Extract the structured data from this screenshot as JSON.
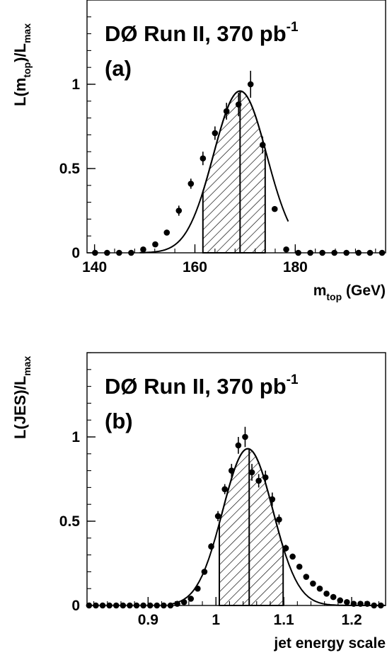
{
  "chart_data": [
    {
      "type": "scatter",
      "panel_label": "(a)",
      "title": "DØ Run II, 370 pb",
      "title_sup": "-1",
      "ylabel": {
        "base": "L(m",
        "sub1": "top",
        "mid": ")/L",
        "sub2": "max"
      },
      "xlabel": {
        "base": "m",
        "sub": "top",
        "unit": " (GeV)"
      },
      "xlim": [
        138.5,
        198
      ],
      "ylim": [
        0,
        1.5
      ],
      "x_ticks": [
        140,
        160,
        180
      ],
      "x_tick_labels": [
        "140",
        "160",
        "180"
      ],
      "y_ticks": [
        0,
        0.5,
        1
      ],
      "y_tick_labels": [
        "0",
        "0.5",
        "1"
      ],
      "series": [
        {
          "x": [
            140.1,
            142.5,
            144.9,
            147.3,
            149.7,
            152.1,
            154.4,
            156.8,
            159.2,
            161.6,
            164.0,
            166.3,
            168.7,
            171.1,
            173.5,
            175.9,
            178.2,
            180.6,
            183.0,
            185.4,
            187.8,
            190.2,
            192.6,
            194.9,
            197.3
          ],
          "y": [
            0.0,
            0.0,
            0.0,
            0.0,
            0.02,
            0.05,
            0.12,
            0.25,
            0.41,
            0.56,
            0.71,
            0.84,
            0.88,
            1.0,
            0.64,
            0.26,
            0.02,
            0.0,
            0.0,
            0.0,
            0.0,
            0.0,
            0.0,
            0.0,
            0.0
          ],
          "yerr": [
            0,
            0,
            0,
            0,
            0,
            0,
            0,
            0.03,
            0.03,
            0.04,
            0.04,
            0.05,
            0.07,
            0.08,
            0.05,
            0,
            0,
            0,
            0,
            0,
            0,
            0,
            0,
            0,
            0
          ]
        }
      ],
      "fit": {
        "mean": 169.0,
        "sigma": 5.3,
        "peak": 0.96,
        "xmin": 149.0,
        "xmax": 178.6
      },
      "shaded_band": [
        161.6,
        174.0
      ],
      "central_line": 169.0
    },
    {
      "type": "scatter",
      "panel_label": "(b)",
      "title": "DØ Run II, 370 pb",
      "title_sup": "-1",
      "ylabel": {
        "base": "L(JES)/L",
        "sub": "max"
      },
      "xlabel": {
        "base": "jet energy scale"
      },
      "xlim": [
        0.81,
        1.25
      ],
      "ylim": [
        0,
        1.5
      ],
      "x_ticks": [
        0.9,
        1.0,
        1.1,
        1.2
      ],
      "x_tick_labels": [
        "0.9",
        "1",
        "1.1",
        "1.2"
      ],
      "y_ticks": [
        0,
        0.5,
        1
      ],
      "y_tick_labels": [
        "0",
        "0.5",
        "1"
      ],
      "series": [
        {
          "x": [
            0.813,
            0.823,
            0.833,
            0.843,
            0.853,
            0.863,
            0.873,
            0.883,
            0.893,
            0.903,
            0.913,
            0.923,
            0.933,
            0.943,
            0.953,
            0.963,
            0.973,
            0.983,
            0.993,
            1.003,
            1.013,
            1.023,
            1.033,
            1.043,
            1.053,
            1.063,
            1.073,
            1.083,
            1.093,
            1.103,
            1.113,
            1.123,
            1.133,
            1.143,
            1.153,
            1.163,
            1.173,
            1.183,
            1.193,
            1.203,
            1.213,
            1.223,
            1.233,
            1.243
          ],
          "y": [
            0,
            0,
            0,
            0,
            0,
            0,
            0,
            0,
            0,
            0,
            0,
            0,
            0.0,
            0.01,
            0.02,
            0.04,
            0.1,
            0.2,
            0.35,
            0.53,
            0.69,
            0.8,
            0.95,
            1.0,
            0.79,
            0.74,
            0.76,
            0.63,
            0.51,
            0.34,
            0.29,
            0.23,
            0.17,
            0.13,
            0.1,
            0.07,
            0.05,
            0.03,
            0.02,
            0.01,
            0.01,
            0.01,
            0.0,
            0.0
          ],
          "yerr": [
            0,
            0,
            0,
            0,
            0,
            0,
            0,
            0,
            0,
            0,
            0,
            0,
            0,
            0,
            0,
            0,
            0,
            0,
            0.02,
            0.03,
            0.03,
            0.04,
            0.05,
            0.06,
            0.05,
            0.04,
            0.04,
            0.04,
            0.03,
            0.02,
            0,
            0,
            0,
            0,
            0,
            0,
            0,
            0,
            0,
            0,
            0,
            0,
            0,
            0
          ]
        }
      ],
      "fit": {
        "mean": 1.047,
        "sigma": 0.037,
        "peak": 0.93,
        "xmin": 0.93,
        "xmax": 1.25
      },
      "shaded_band": [
        1.005,
        1.099
      ],
      "central_line": 1.049
    }
  ]
}
